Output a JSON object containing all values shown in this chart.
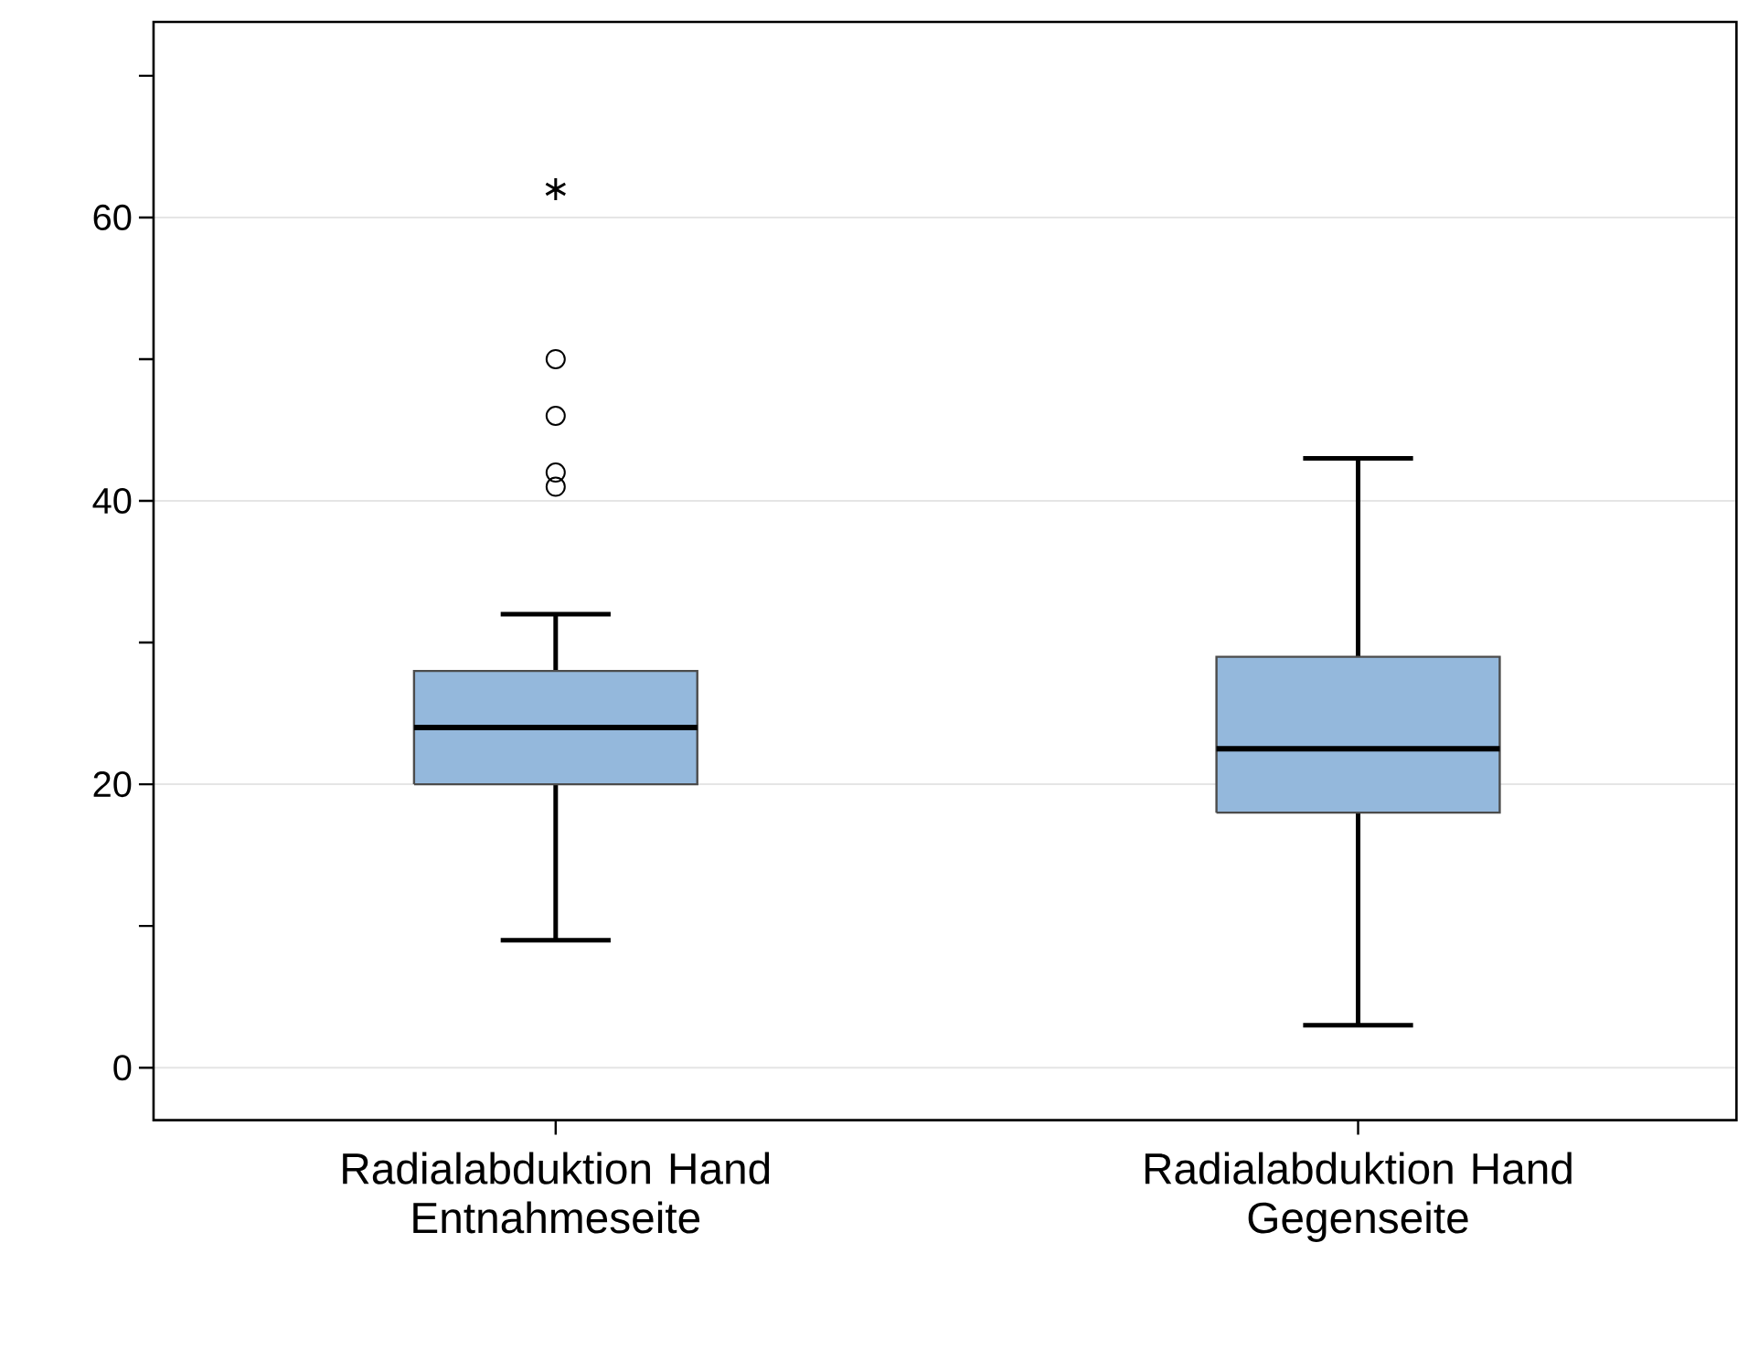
{
  "chart_data": {
    "type": "box",
    "categories": [
      "Radialabduktion Hand\nEntnahmeseite",
      "Radialabduktion Hand\nGegenseite"
    ],
    "color": "#94b8dc",
    "boxes": [
      {
        "low": 9,
        "q1": 20,
        "median": 24,
        "q3": 28,
        "high": 32,
        "outliers": [
          41,
          42,
          46,
          50,
          62
        ]
      },
      {
        "low": 3,
        "q1": 18,
        "median": 22.5,
        "q3": 29,
        "high": 43
      }
    ],
    "ylim": [
      -3.7,
      73.8
    ],
    "yticks": [
      0,
      {
        "value": 10,
        "label": null
      },
      20,
      {
        "value": 30,
        "label": null
      },
      40,
      {
        "value": 50,
        "label": null
      },
      60,
      {
        "value": 70,
        "label": null
      }
    ],
    "grid": "y"
  }
}
